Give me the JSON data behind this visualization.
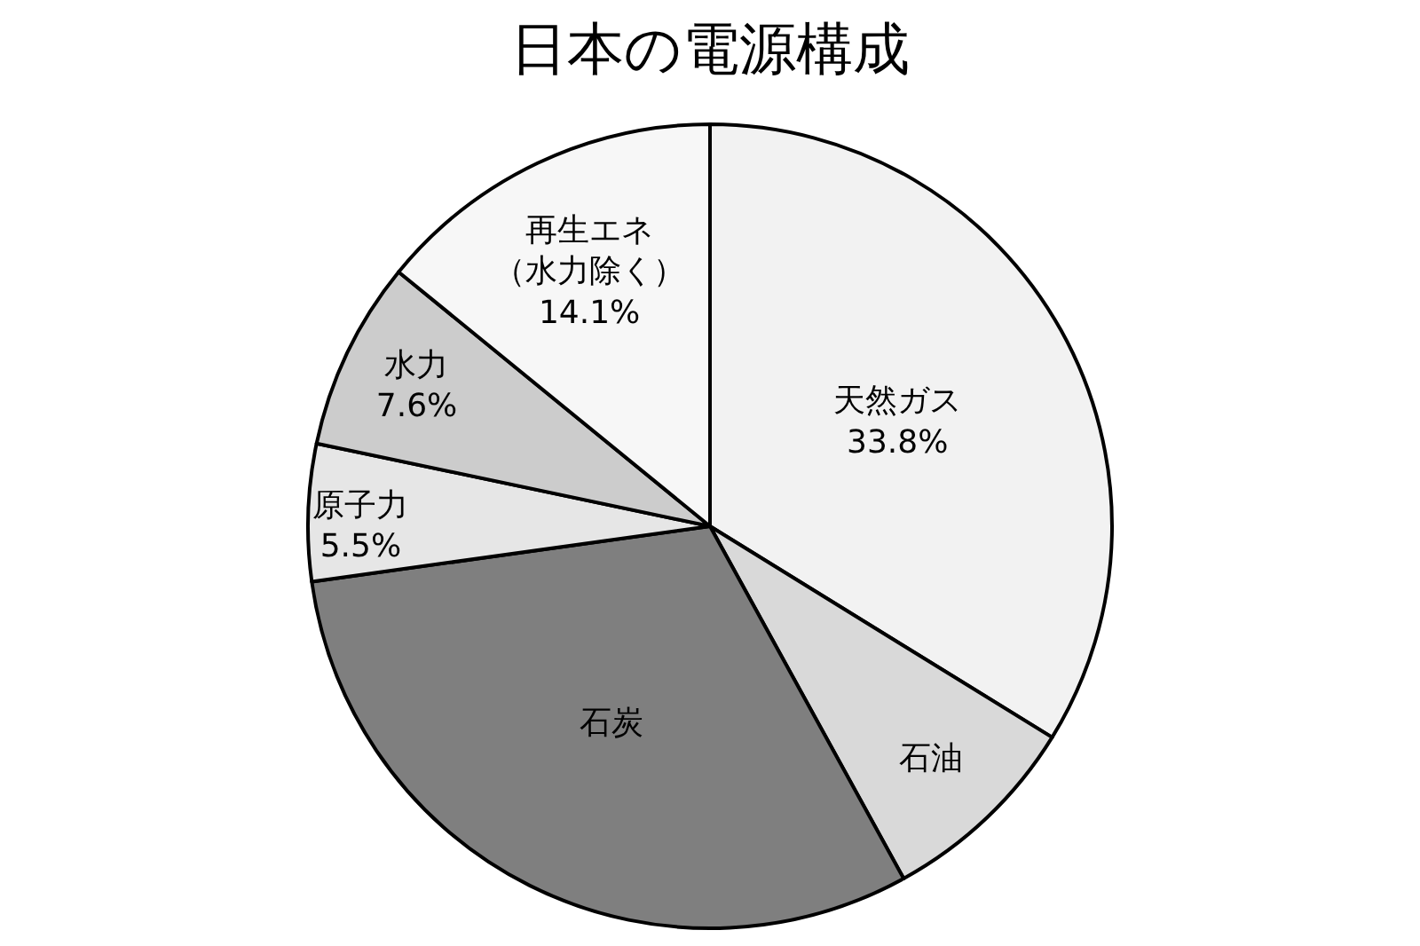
{
  "chart_data": {
    "type": "pie",
    "title": "日本の電源構成",
    "categories": [
      "天然ガス",
      "石油",
      "石炭",
      "原子力",
      "水力",
      "再生エネ（水力除く）"
    ],
    "values": [
      33.8,
      8.2,
      30.8,
      5.5,
      7.6,
      14.1
    ],
    "value_labels": [
      "33.8%",
      null,
      null,
      "5.5%",
      "7.6%",
      "14.1%"
    ],
    "colors": [
      "#f2f2f2",
      "#d9d9d9",
      "#7f7f7f",
      "#e6e6e6",
      "#cccccc",
      "#f7f7f7"
    ]
  }
}
